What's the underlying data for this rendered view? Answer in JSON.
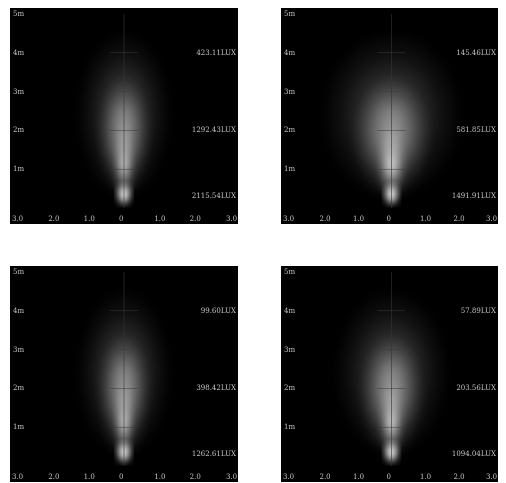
{
  "chart_data": [
    {
      "type": "heatmap",
      "y_axis_labels": [
        "5m",
        "4m",
        "3m",
        "2m",
        "1m"
      ],
      "x_axis_labels": [
        "3.0",
        "2.0",
        "1.0",
        "0",
        "1.0",
        "2.0",
        "3.0"
      ],
      "xlim": [
        -3.0,
        3.0
      ],
      "ylim": [
        0,
        5
      ],
      "beam_spread": "narrow",
      "lux_readings": [
        {
          "distance_m": 4,
          "label": "423.11LUX"
        },
        {
          "distance_m": 2,
          "label": "1292.43LUX"
        },
        {
          "distance_m": 0.3,
          "label": "2115.54LUX"
        }
      ]
    },
    {
      "type": "heatmap",
      "y_axis_labels": [
        "5m",
        "4m",
        "3m",
        "2m",
        "1m"
      ],
      "x_axis_labels": [
        "3.0",
        "2.0",
        "1.0",
        "0",
        "1.0",
        "2.0",
        "3.0"
      ],
      "xlim": [
        -3.0,
        3.0
      ],
      "ylim": [
        0,
        5
      ],
      "beam_spread": "wide",
      "lux_readings": [
        {
          "distance_m": 4,
          "label": "145.46LUX"
        },
        {
          "distance_m": 2,
          "label": "581.85LUX"
        },
        {
          "distance_m": 0.3,
          "label": "1491.91LUX"
        }
      ]
    },
    {
      "type": "heatmap",
      "y_axis_labels": [
        "5m",
        "4m",
        "3m",
        "2m",
        "1m"
      ],
      "x_axis_labels": [
        "3.0",
        "2.0",
        "1.0",
        "0",
        "1.0",
        "2.0",
        "3.0"
      ],
      "xlim": [
        -3.0,
        3.0
      ],
      "ylim": [
        0,
        5
      ],
      "beam_spread": "narrow",
      "lux_readings": [
        {
          "distance_m": 4,
          "label": "99.60LUX"
        },
        {
          "distance_m": 2,
          "label": "398.42LUX"
        },
        {
          "distance_m": 0.3,
          "label": "1262.61LUX"
        }
      ]
    },
    {
      "type": "heatmap",
      "y_axis_labels": [
        "5m",
        "4m",
        "3m",
        "2m",
        "1m"
      ],
      "x_axis_labels": [
        "3.0",
        "2.0",
        "1.0",
        "0",
        "1.0",
        "2.0",
        "3.0"
      ],
      "xlim": [
        -3.0,
        3.0
      ],
      "ylim": [
        0,
        5
      ],
      "beam_spread": "medium",
      "lux_readings": [
        {
          "distance_m": 4,
          "label": "57.89LUX"
        },
        {
          "distance_m": 2,
          "label": "203.56LUX"
        },
        {
          "distance_m": 0.3,
          "label": "1094.04LUX"
        }
      ]
    }
  ]
}
